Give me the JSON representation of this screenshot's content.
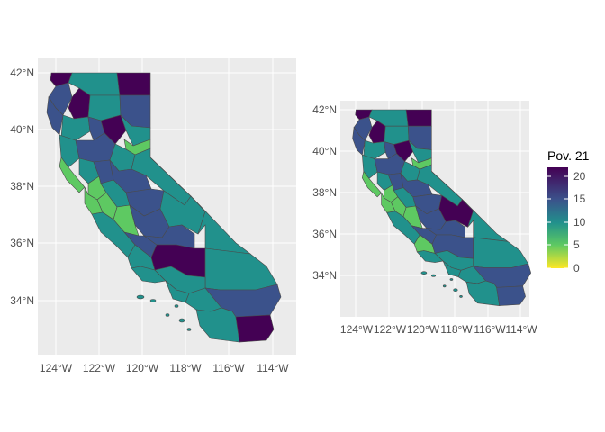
{
  "chart_data": [
    {
      "type": "choropleth",
      "region": "California counties",
      "x_ticks": [
        "124°W",
        "122°W",
        "120°W",
        "118°W",
        "116°W",
        "114°W"
      ],
      "y_ticks": [
        "34°N",
        "36°N",
        "38°N",
        "40°N",
        "42°N"
      ],
      "xlim": [
        -125.1,
        -113.6
      ],
      "ylim": [
        32.2,
        42.4
      ],
      "grid": true,
      "background": "#ebebeb"
    },
    {
      "type": "choropleth",
      "region": "California counties",
      "x_ticks": [
        "124°W",
        "122°W",
        "120°W",
        "118°W",
        "116°W",
        "114°W"
      ],
      "y_ticks": [
        "34°N",
        "36°N",
        "38°N",
        "40°N",
        "42°N"
      ],
      "xlim": [
        -125.1,
        -113.6
      ],
      "ylim": [
        32.2,
        42.4
      ],
      "grid": true,
      "background": "#ebebeb"
    }
  ],
  "legend": {
    "title": "Pov. 21",
    "ticks": [
      "0",
      "5",
      "10",
      "15",
      "20"
    ],
    "range": [
      0,
      22
    ],
    "colormap": "viridis (reversed)",
    "placement": "right"
  },
  "colors": {
    "panel_bg": "#ebebeb",
    "grid": "#ffffff",
    "outline": "#4a4a4a",
    "v0": "#fde725",
    "v5": "#5ec962",
    "v10": "#21918c",
    "v15": "#3b528b",
    "v22": "#440154"
  }
}
